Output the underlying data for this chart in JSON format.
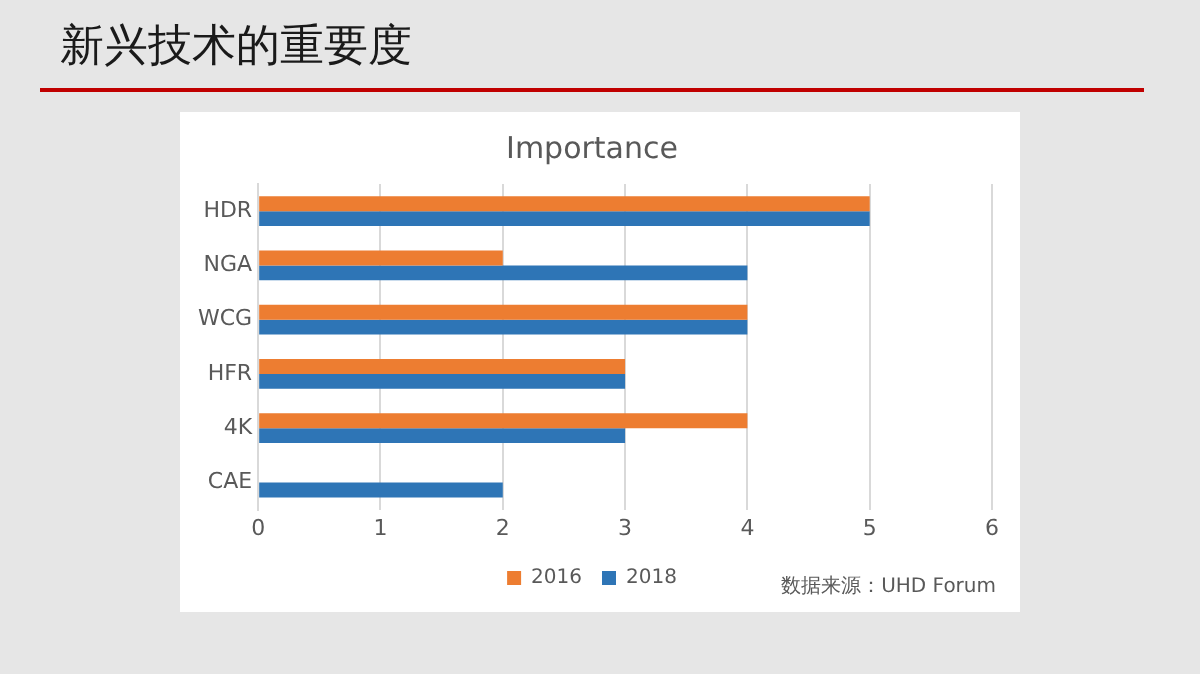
{
  "chart_data": {
    "type": "bar",
    "orientation": "horizontal",
    "title": "新兴技术的重要度",
    "subtitle": "Importance",
    "categories": [
      "HDR",
      "NGA",
      "WCG",
      "HFR",
      "4K",
      "CAE"
    ],
    "series": [
      {
        "name": "2016",
        "color": "#ed7d31",
        "values": [
          5,
          2,
          4,
          3,
          4,
          null
        ]
      },
      {
        "name": "2018",
        "color": "#2e75b6",
        "values": [
          5,
          4,
          4,
          3,
          3,
          2
        ]
      }
    ],
    "xlim": [
      0,
      6
    ],
    "xticks": [
      0,
      1,
      2,
      3,
      4,
      5,
      6
    ],
    "grid": "x",
    "legend": "bottom",
    "annotations": [
      "数据来源：UHD Forum"
    ]
  }
}
